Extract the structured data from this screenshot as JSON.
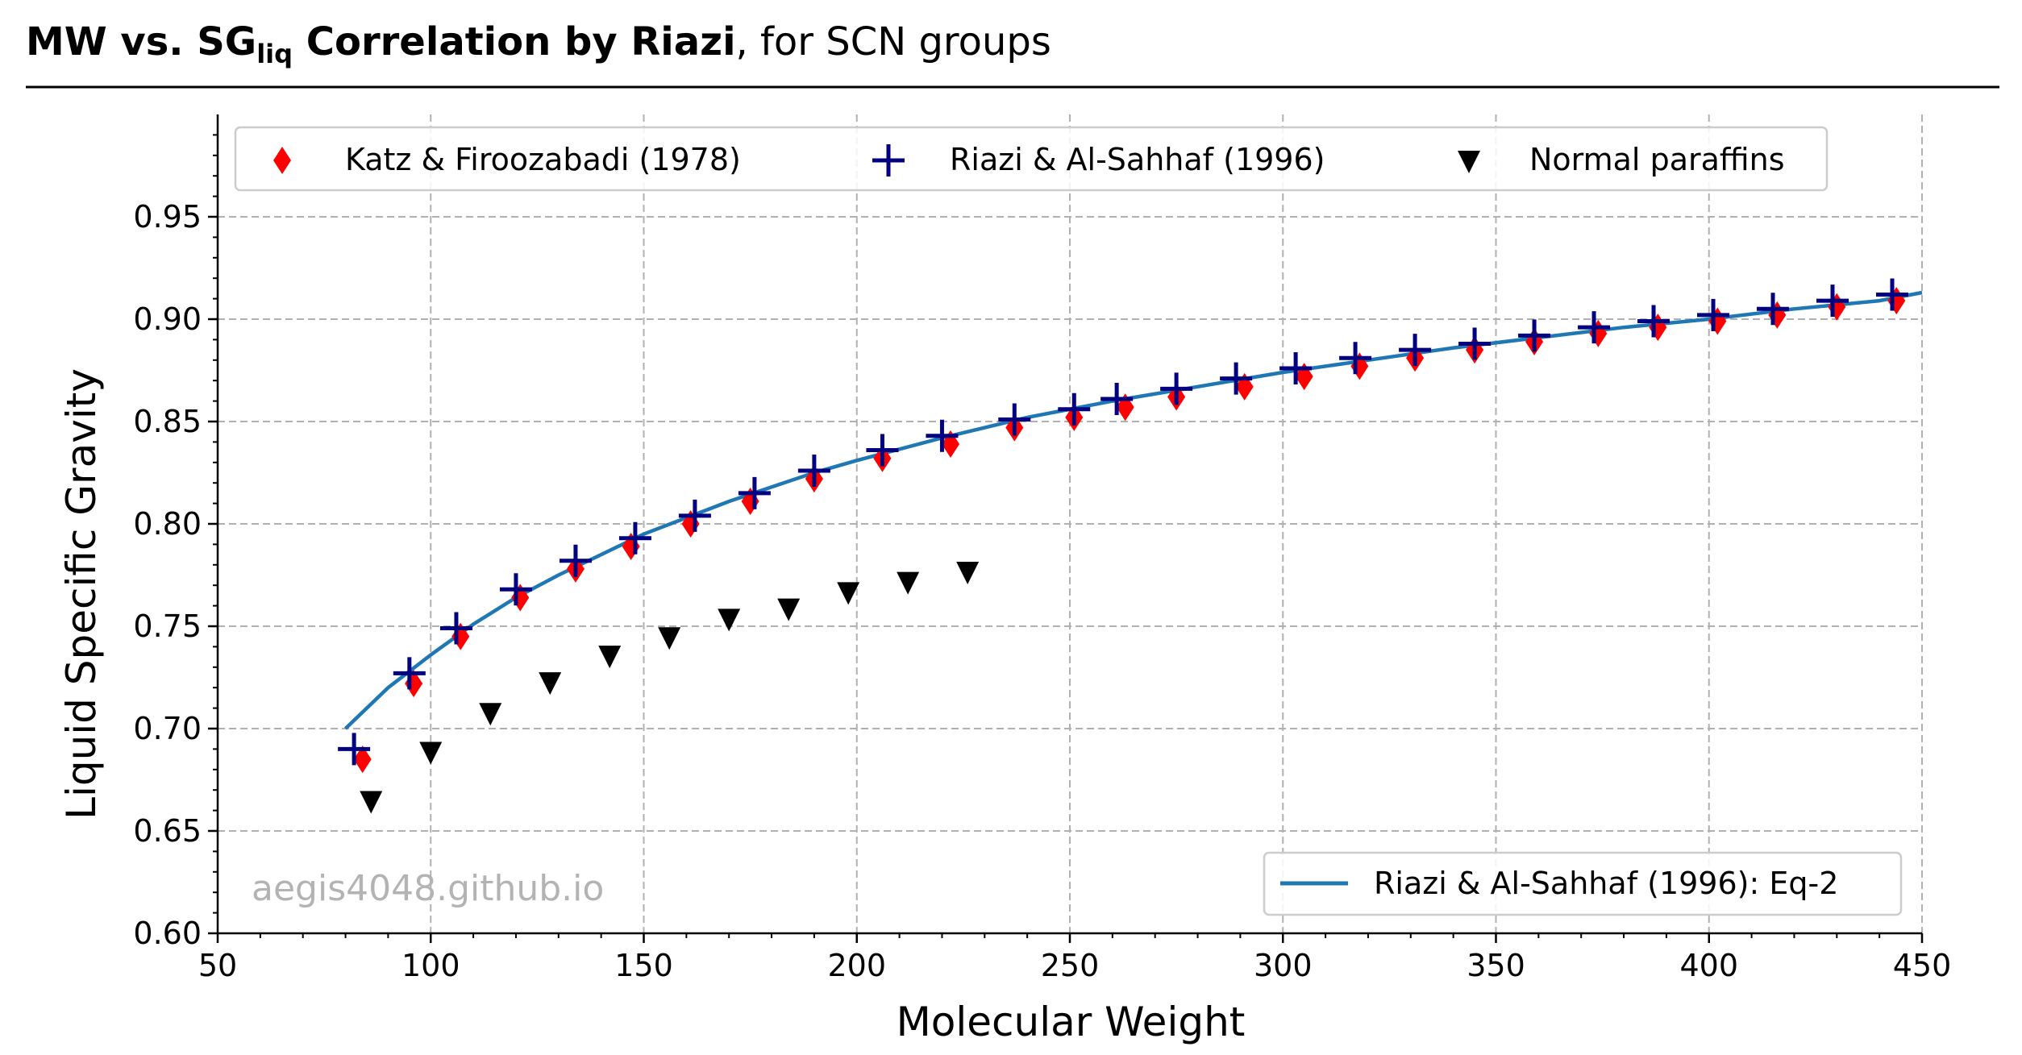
{
  "chart_data": {
    "type": "scatter",
    "title": {
      "part1": "MW vs. ",
      "sg_base": "SG",
      "sg_sub": "liq",
      "part2": " Correlation by Riazi",
      "rest": ", for SCN groups"
    },
    "xlabel": "Molecular Weight",
    "ylabel": "Liquid Specific Gravity",
    "xlim": [
      50,
      450
    ],
    "ylim": [
      0.6,
      1.0
    ],
    "xticks": [
      50,
      100,
      150,
      200,
      250,
      300,
      350,
      400,
      450
    ],
    "yticks": [
      0.6,
      0.65,
      0.7,
      0.75,
      0.8,
      0.85,
      0.9,
      0.95
    ],
    "grid": true,
    "watermark": "aegis4048.github.io",
    "legend_top": {
      "placement": "top",
      "items": [
        {
          "label": "Katz & Firoozabadi (1978)",
          "marker": "diamond",
          "color": "#ff0000"
        },
        {
          "label": "Riazi & Al-Sahhaf (1996)",
          "marker": "plus",
          "color": "#000080"
        },
        {
          "label": "Normal paraffins",
          "marker": "triangle-down",
          "color": "#000000"
        }
      ]
    },
    "legend_bottom": {
      "placement": "lower-right",
      "items": [
        {
          "label": "Riazi & Al-Sahhaf (1996): Eq-2",
          "marker": "line",
          "color": "#1f77b4"
        }
      ]
    },
    "series": [
      {
        "name": "Katz & Firoozabadi (1978)",
        "marker": "diamond",
        "color": "#ff0000",
        "x": [
          84,
          96,
          107,
          121,
          134,
          147,
          161,
          175,
          190,
          206,
          222,
          237,
          251,
          263,
          275,
          291,
          305,
          318,
          331,
          345,
          359,
          374,
          388,
          402,
          416,
          430,
          444
        ],
        "y": [
          0.685,
          0.722,
          0.745,
          0.764,
          0.778,
          0.789,
          0.8,
          0.811,
          0.822,
          0.832,
          0.839,
          0.847,
          0.852,
          0.857,
          0.862,
          0.867,
          0.872,
          0.877,
          0.881,
          0.885,
          0.889,
          0.893,
          0.896,
          0.899,
          0.902,
          0.906,
          0.909
        ]
      },
      {
        "name": "Riazi & Al-Sahhaf (1996)",
        "marker": "plus",
        "color": "#000080",
        "x": [
          82,
          95,
          106,
          120,
          134,
          148,
          162,
          176,
          190,
          206,
          220,
          237,
          251,
          261,
          275,
          289,
          303,
          317,
          331,
          345,
          359,
          373,
          387,
          401,
          415,
          429,
          443
        ],
        "y": [
          0.69,
          0.727,
          0.749,
          0.768,
          0.782,
          0.793,
          0.804,
          0.815,
          0.826,
          0.836,
          0.843,
          0.851,
          0.856,
          0.861,
          0.866,
          0.871,
          0.876,
          0.881,
          0.885,
          0.888,
          0.892,
          0.896,
          0.899,
          0.902,
          0.905,
          0.909,
          0.912
        ]
      },
      {
        "name": "Normal paraffins",
        "marker": "triangle-down",
        "color": "#000000",
        "x": [
          86,
          100,
          114,
          128,
          142,
          156,
          170,
          184,
          198,
          212,
          226
        ],
        "y": [
          0.664,
          0.688,
          0.707,
          0.722,
          0.735,
          0.744,
          0.753,
          0.758,
          0.766,
          0.771,
          0.776
        ]
      },
      {
        "name": "Riazi & Al-Sahhaf (1996): Eq-2",
        "marker": "line",
        "color": "#1f77b4",
        "x": [
          80,
          90,
          100,
          110,
          120,
          130,
          140,
          150,
          160,
          170,
          180,
          190,
          200,
          220,
          240,
          260,
          280,
          300,
          320,
          340,
          360,
          380,
          400,
          420,
          440,
          450
        ],
        "y": [
          0.7,
          0.72,
          0.736,
          0.751,
          0.764,
          0.775,
          0.785,
          0.795,
          0.803,
          0.811,
          0.818,
          0.825,
          0.831,
          0.842,
          0.852,
          0.86,
          0.867,
          0.874,
          0.88,
          0.886,
          0.891,
          0.896,
          0.9,
          0.905,
          0.909,
          0.913
        ]
      }
    ]
  }
}
